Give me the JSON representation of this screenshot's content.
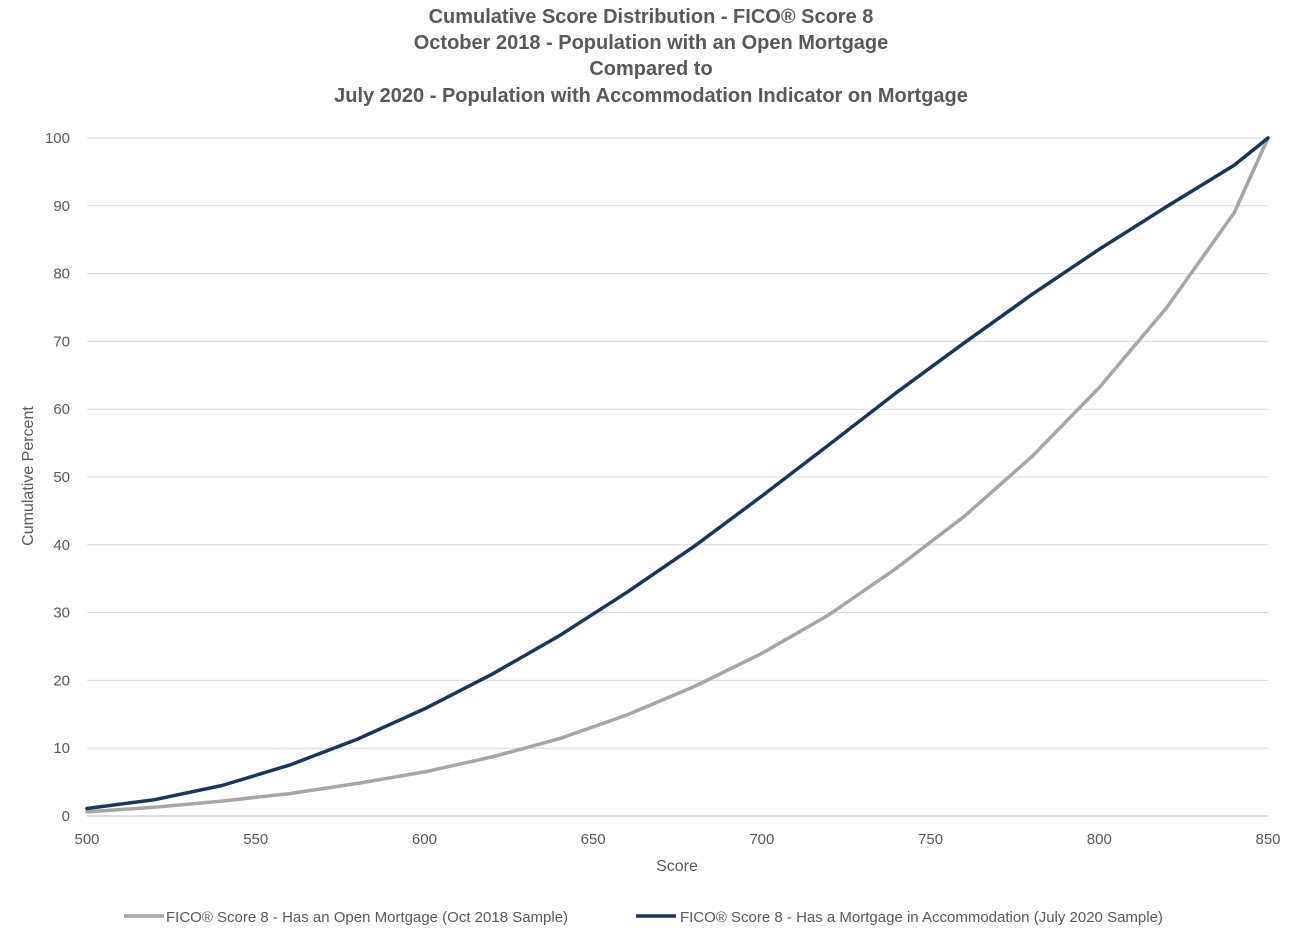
{
  "chart_data": {
    "type": "line",
    "title_lines": [
      "Cumulative Score Distribution - FICO® Score 8",
      "October 2018 - Population with an Open Mortgage",
      "Compared to",
      "July 2020 - Population with Accommodation Indicator on Mortgage"
    ],
    "xlabel": "Score",
    "ylabel": "Cumulative Percent",
    "xlim": [
      500,
      850
    ],
    "ylim": [
      0,
      100
    ],
    "xticks": [
      500,
      550,
      600,
      650,
      700,
      750,
      800,
      850
    ],
    "yticks": [
      0,
      10,
      20,
      30,
      40,
      50,
      60,
      70,
      80,
      90,
      100
    ],
    "grid": "horizontal",
    "legend_position": "bottom",
    "x": [
      500,
      520,
      540,
      560,
      580,
      600,
      620,
      640,
      660,
      680,
      700,
      720,
      740,
      760,
      780,
      800,
      820,
      840,
      850
    ],
    "series": [
      {
        "name": "FICO® Score 8 - Has an Open Mortgage (Oct 2018 Sample)",
        "color": "#A6A6A6",
        "values": [
          0.6,
          1.3,
          2.2,
          3.3,
          4.8,
          6.5,
          8.7,
          11.4,
          14.9,
          19.1,
          24.0,
          29.7,
          36.6,
          44.2,
          53.0,
          63.2,
          75.0,
          89.0,
          100
        ]
      },
      {
        "name": "FICO® Score 8 - Has a Mortgage in Accommodation (July 2020 Sample)",
        "color": "#17375E",
        "values": [
          1.1,
          2.4,
          4.5,
          7.5,
          11.3,
          15.8,
          20.9,
          26.6,
          33.0,
          39.8,
          47.2,
          54.8,
          62.5,
          69.8,
          76.9,
          83.6,
          89.9,
          96.0,
          100
        ]
      }
    ]
  }
}
